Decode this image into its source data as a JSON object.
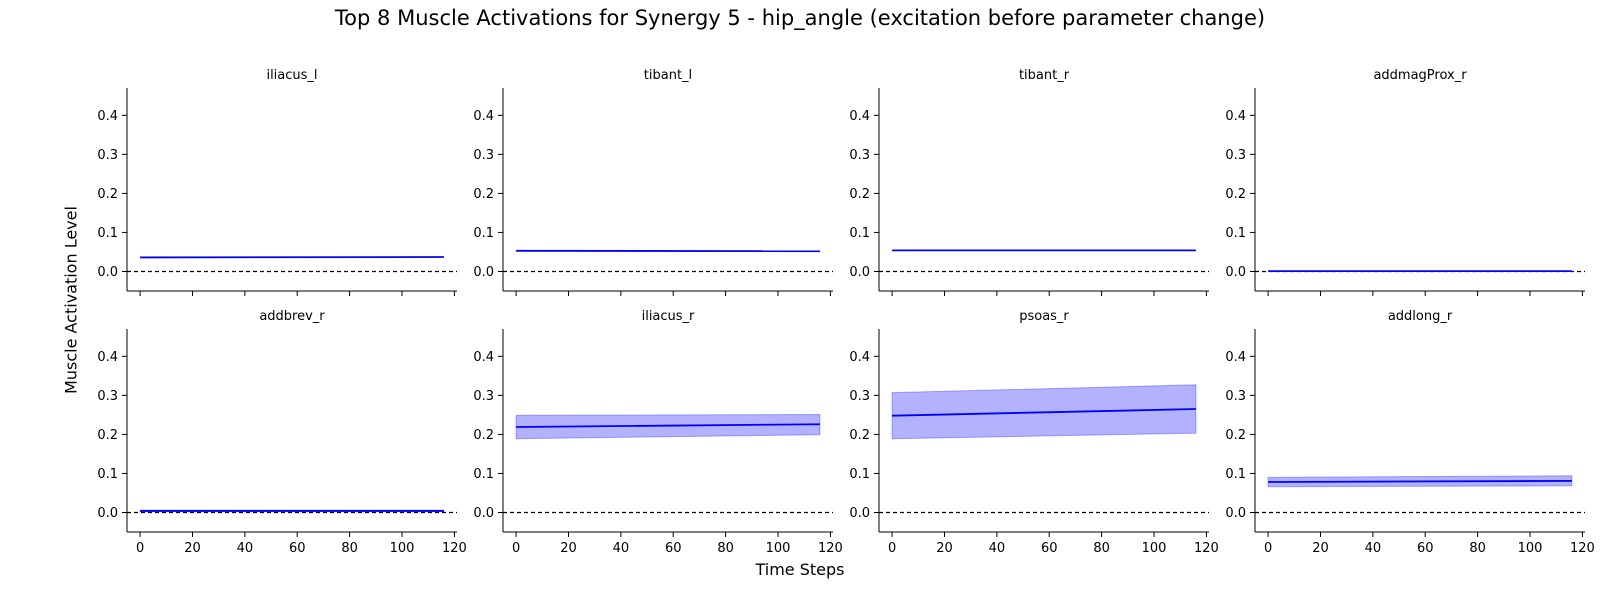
{
  "figure": {
    "title": "Top 8 Muscle Activations for Synergy 5 - hip_angle (excitation before parameter change)",
    "xlabel": "Time Steps",
    "ylabel": "Muscle Activation Level"
  },
  "chart_data": [
    {
      "type": "line",
      "title": "iliacus_l",
      "x": [
        0,
        116
      ],
      "mean": [
        0.036,
        0.037
      ],
      "lower": [
        0.036,
        0.037
      ],
      "upper": [
        0.036,
        0.037
      ],
      "xlim": [
        -5,
        121
      ],
      "ylim": [
        -0.05,
        0.47
      ],
      "xticks": [
        0,
        20,
        40,
        60,
        80,
        100,
        120
      ],
      "yticks": [
        0.0,
        0.1,
        0.2,
        0.3,
        0.4
      ],
      "reference_line": 0.0,
      "line_color": "#0000ff",
      "band_color": "#0000ff"
    },
    {
      "type": "line",
      "title": "tibant_l",
      "x": [
        0,
        116
      ],
      "mean": [
        0.053,
        0.052
      ],
      "lower": [
        0.053,
        0.052
      ],
      "upper": [
        0.053,
        0.052
      ],
      "xlim": [
        -5,
        121
      ],
      "ylim": [
        -0.05,
        0.47
      ],
      "xticks": [
        0,
        20,
        40,
        60,
        80,
        100,
        120
      ],
      "yticks": [
        0.0,
        0.1,
        0.2,
        0.3,
        0.4
      ],
      "reference_line": 0.0,
      "line_color": "#0000ff",
      "band_color": "#0000ff"
    },
    {
      "type": "line",
      "title": "tibant_r",
      "x": [
        0,
        116
      ],
      "mean": [
        0.054,
        0.054
      ],
      "lower": [
        0.054,
        0.054
      ],
      "upper": [
        0.054,
        0.054
      ],
      "xlim": [
        -5,
        121
      ],
      "ylim": [
        -0.05,
        0.47
      ],
      "xticks": [
        0,
        20,
        40,
        60,
        80,
        100,
        120
      ],
      "yticks": [
        0.0,
        0.1,
        0.2,
        0.3,
        0.4
      ],
      "reference_line": 0.0,
      "line_color": "#0000ff",
      "band_color": "#0000ff"
    },
    {
      "type": "line",
      "title": "addmagProx_r",
      "x": [
        0,
        116
      ],
      "mean": [
        0.001,
        0.001
      ],
      "lower": [
        0.001,
        0.001
      ],
      "upper": [
        0.001,
        0.001
      ],
      "xlim": [
        -5,
        121
      ],
      "ylim": [
        -0.05,
        0.47
      ],
      "xticks": [
        0,
        20,
        40,
        60,
        80,
        100,
        120
      ],
      "yticks": [
        0.0,
        0.1,
        0.2,
        0.3,
        0.4
      ],
      "reference_line": 0.0,
      "line_color": "#0000ff",
      "band_color": "#0000ff"
    },
    {
      "type": "line",
      "title": "addbrev_r",
      "x": [
        0,
        116
      ],
      "mean": [
        0.004,
        0.004
      ],
      "lower": [
        0.002,
        0.002
      ],
      "upper": [
        0.006,
        0.006
      ],
      "xlim": [
        -5,
        121
      ],
      "ylim": [
        -0.05,
        0.47
      ],
      "xticks": [
        0,
        20,
        40,
        60,
        80,
        100,
        120
      ],
      "yticks": [
        0.0,
        0.1,
        0.2,
        0.3,
        0.4
      ],
      "reference_line": 0.0,
      "line_color": "#0000ff",
      "band_color": "#0000ff"
    },
    {
      "type": "line",
      "title": "iliacus_r",
      "x": [
        0,
        116
      ],
      "mean": [
        0.219,
        0.226
      ],
      "lower": [
        0.189,
        0.199
      ],
      "upper": [
        0.249,
        0.251
      ],
      "xlim": [
        -5,
        121
      ],
      "ylim": [
        -0.05,
        0.47
      ],
      "xticks": [
        0,
        20,
        40,
        60,
        80,
        100,
        120
      ],
      "yticks": [
        0.0,
        0.1,
        0.2,
        0.3,
        0.4
      ],
      "reference_line": 0.0,
      "line_color": "#0000ff",
      "band_color": "#0000ff"
    },
    {
      "type": "line",
      "title": "psoas_r",
      "x": [
        0,
        116
      ],
      "mean": [
        0.248,
        0.265
      ],
      "lower": [
        0.189,
        0.203
      ],
      "upper": [
        0.307,
        0.327
      ],
      "xlim": [
        -5,
        121
      ],
      "ylim": [
        -0.05,
        0.47
      ],
      "xticks": [
        0,
        20,
        40,
        60,
        80,
        100,
        120
      ],
      "yticks": [
        0.0,
        0.1,
        0.2,
        0.3,
        0.4
      ],
      "reference_line": 0.0,
      "line_color": "#0000ff",
      "band_color": "#0000ff"
    },
    {
      "type": "line",
      "title": "addlong_r",
      "x": [
        0,
        116
      ],
      "mean": [
        0.078,
        0.081
      ],
      "lower": [
        0.066,
        0.068
      ],
      "upper": [
        0.09,
        0.094
      ],
      "xlim": [
        -5,
        121
      ],
      "ylim": [
        -0.05,
        0.47
      ],
      "xticks": [
        0,
        20,
        40,
        60,
        80,
        100,
        120
      ],
      "yticks": [
        0.0,
        0.1,
        0.2,
        0.3,
        0.4
      ],
      "reference_line": 0.0,
      "line_color": "#0000ff",
      "band_color": "#0000ff"
    }
  ]
}
